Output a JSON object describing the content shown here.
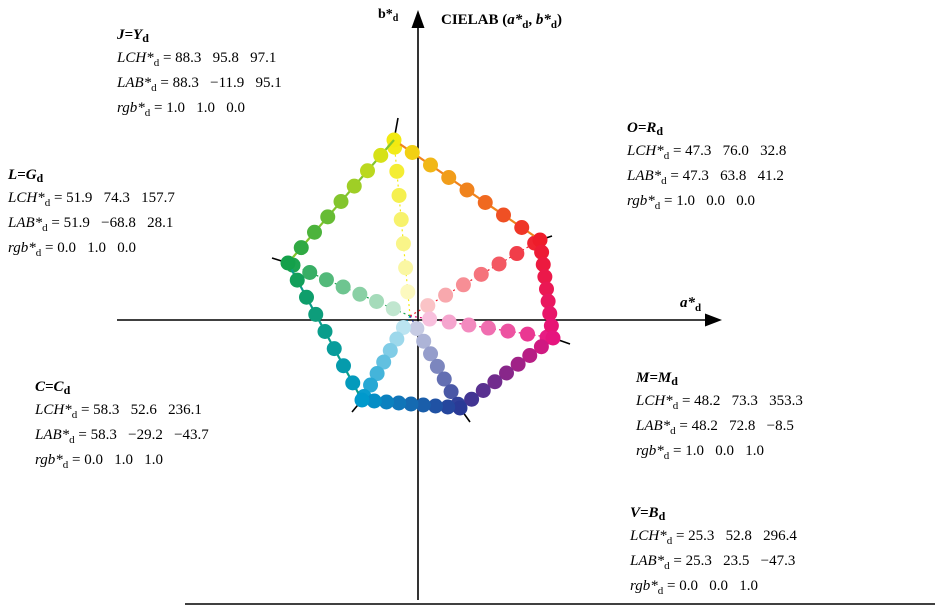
{
  "axes": {
    "title_prefix": "CIELAB (",
    "title_a": "a*",
    "title_a_sub": "d",
    "title_sep": ", ",
    "title_b": "b*",
    "title_b_sub": "d",
    "title_suffix": ")",
    "x_label": "a*",
    "x_label_sub": "d",
    "y_label": "b*",
    "y_label_sub": "d"
  },
  "row_prefixes": {
    "lch": "LCH*",
    "lab": "LAB*",
    "rgb": "rgb*",
    "sub": "d",
    "eq": " = "
  },
  "hues": [
    {
      "id": "J",
      "name": "J=Y",
      "sub": "d",
      "lch": "88.3   95.8   97.1",
      "lab": "88.3   −11.9   95.1",
      "rgb": "1.0   1.0   0.0"
    },
    {
      "id": "O",
      "name": "O=R",
      "sub": "d",
      "lch": "47.3   76.0   32.8",
      "lab": "47.3   63.8   41.2",
      "rgb": "1.0   0.0   0.0"
    },
    {
      "id": "L",
      "name": "L=G",
      "sub": "d",
      "lch": "51.9   74.3   157.7",
      "lab": "51.9   −68.8   28.1",
      "rgb": "0.0   1.0   0.0"
    },
    {
      "id": "C",
      "name": "C=C",
      "sub": "d",
      "lch": "58.3   52.6   236.1",
      "lab": "58.3   −29.2   −43.7",
      "rgb": "0.0   1.0   1.0"
    },
    {
      "id": "M",
      "name": "M=M",
      "sub": "d",
      "lch": "48.2   73.3   353.3",
      "lab": "48.2   72.8   −8.5",
      "rgb": "1.0   0.0   1.0"
    },
    {
      "id": "V",
      "name": "V=B",
      "sub": "d",
      "lch": "25.3   52.8   296.4",
      "lab": "25.3   23.5   −47.3",
      "rgb": "0.0   0.0   1.0"
    }
  ],
  "colors": {
    "yellow": "#f2ea10",
    "orange_red": "#ee1c2a",
    "green": "#14a04a",
    "cyan": "#0099cc",
    "magenta": "#e6147e",
    "blue": "#2a3a96",
    "axis": "#000000"
  }
}
